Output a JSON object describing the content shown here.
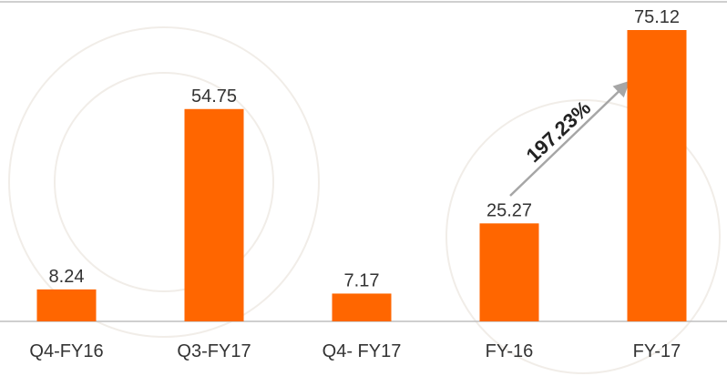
{
  "chart_data": {
    "type": "bar",
    "categories": [
      "Q4-FY16",
      "Q3-FY17",
      "Q4- FY17",
      "FY-16",
      "FY-17"
    ],
    "values": [
      8.24,
      54.75,
      7.17,
      25.27,
      75.12
    ],
    "color": "#ff6600",
    "annotation": "197.23%"
  }
}
